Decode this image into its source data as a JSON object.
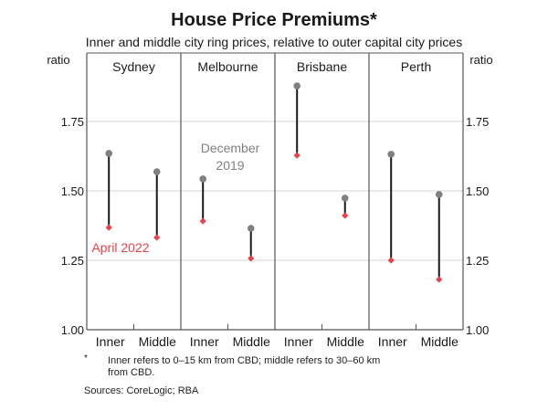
{
  "chart_data": {
    "type": "dumbbell",
    "title": "House Price Premiums*",
    "subtitle": "Inner and middle city ring prices, relative to outer capital city prices",
    "ylabel_left": "ratio",
    "ylabel_right": "ratio",
    "ylim": [
      1.0,
      2.0
    ],
    "yticks": [
      1.0,
      1.25,
      1.5,
      1.75
    ],
    "ytick_labels": [
      "1.00",
      "1.25",
      "1.50",
      "1.75"
    ],
    "grid": true,
    "panels": [
      {
        "name": "Sydney",
        "categories": [
          "Inner",
          "Middle"
        ],
        "december_2019": [
          1.635,
          1.569
        ],
        "april_2022": [
          1.368,
          1.332
        ]
      },
      {
        "name": "Melbourne",
        "categories": [
          "Inner",
          "Middle"
        ],
        "december_2019": [
          1.543,
          1.365
        ],
        "april_2022": [
          1.391,
          1.257
        ]
      },
      {
        "name": "Brisbane",
        "categories": [
          "Inner",
          "Middle"
        ],
        "december_2019": [
          1.878,
          1.474
        ],
        "april_2022": [
          1.628,
          1.411
        ]
      },
      {
        "name": "Perth",
        "categories": [
          "Inner",
          "Middle"
        ],
        "december_2019": [
          1.632,
          1.487
        ],
        "april_2022": [
          1.25,
          1.181
        ]
      }
    ],
    "series": [
      {
        "name": "December 2019",
        "label_lines": [
          "December",
          "2019"
        ],
        "color": "#808080"
      },
      {
        "name": "April 2022",
        "color": "#e8424a"
      }
    ],
    "connector_color": "#1a1a1a"
  },
  "footnote": {
    "marker": "*",
    "text": "Inner refers to 0–15 km from CBD; middle refers to 30–60 km from CBD."
  },
  "sources": "Sources: CoreLogic; RBA"
}
